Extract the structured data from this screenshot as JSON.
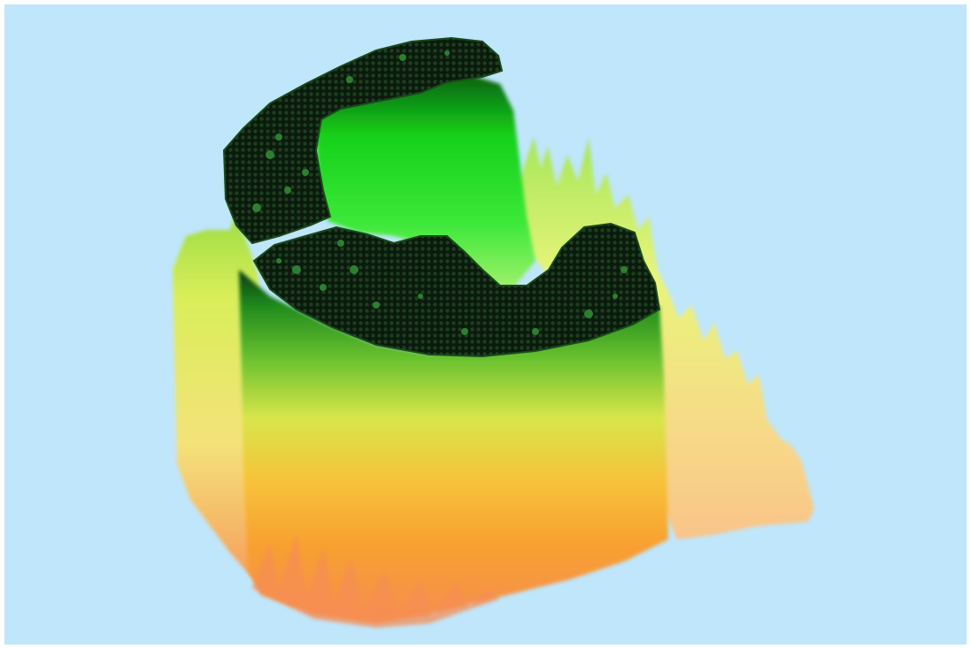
{
  "scene": {
    "subject": "3d-terrain-surface-render",
    "background_color": "#bfe6fb",
    "colors": {
      "high_dark": "#0d1a0e",
      "bright_green": "#1ee61e",
      "yellow": "#eef55a",
      "orange": "#f7a235",
      "salmon": "#f58a52"
    }
  }
}
